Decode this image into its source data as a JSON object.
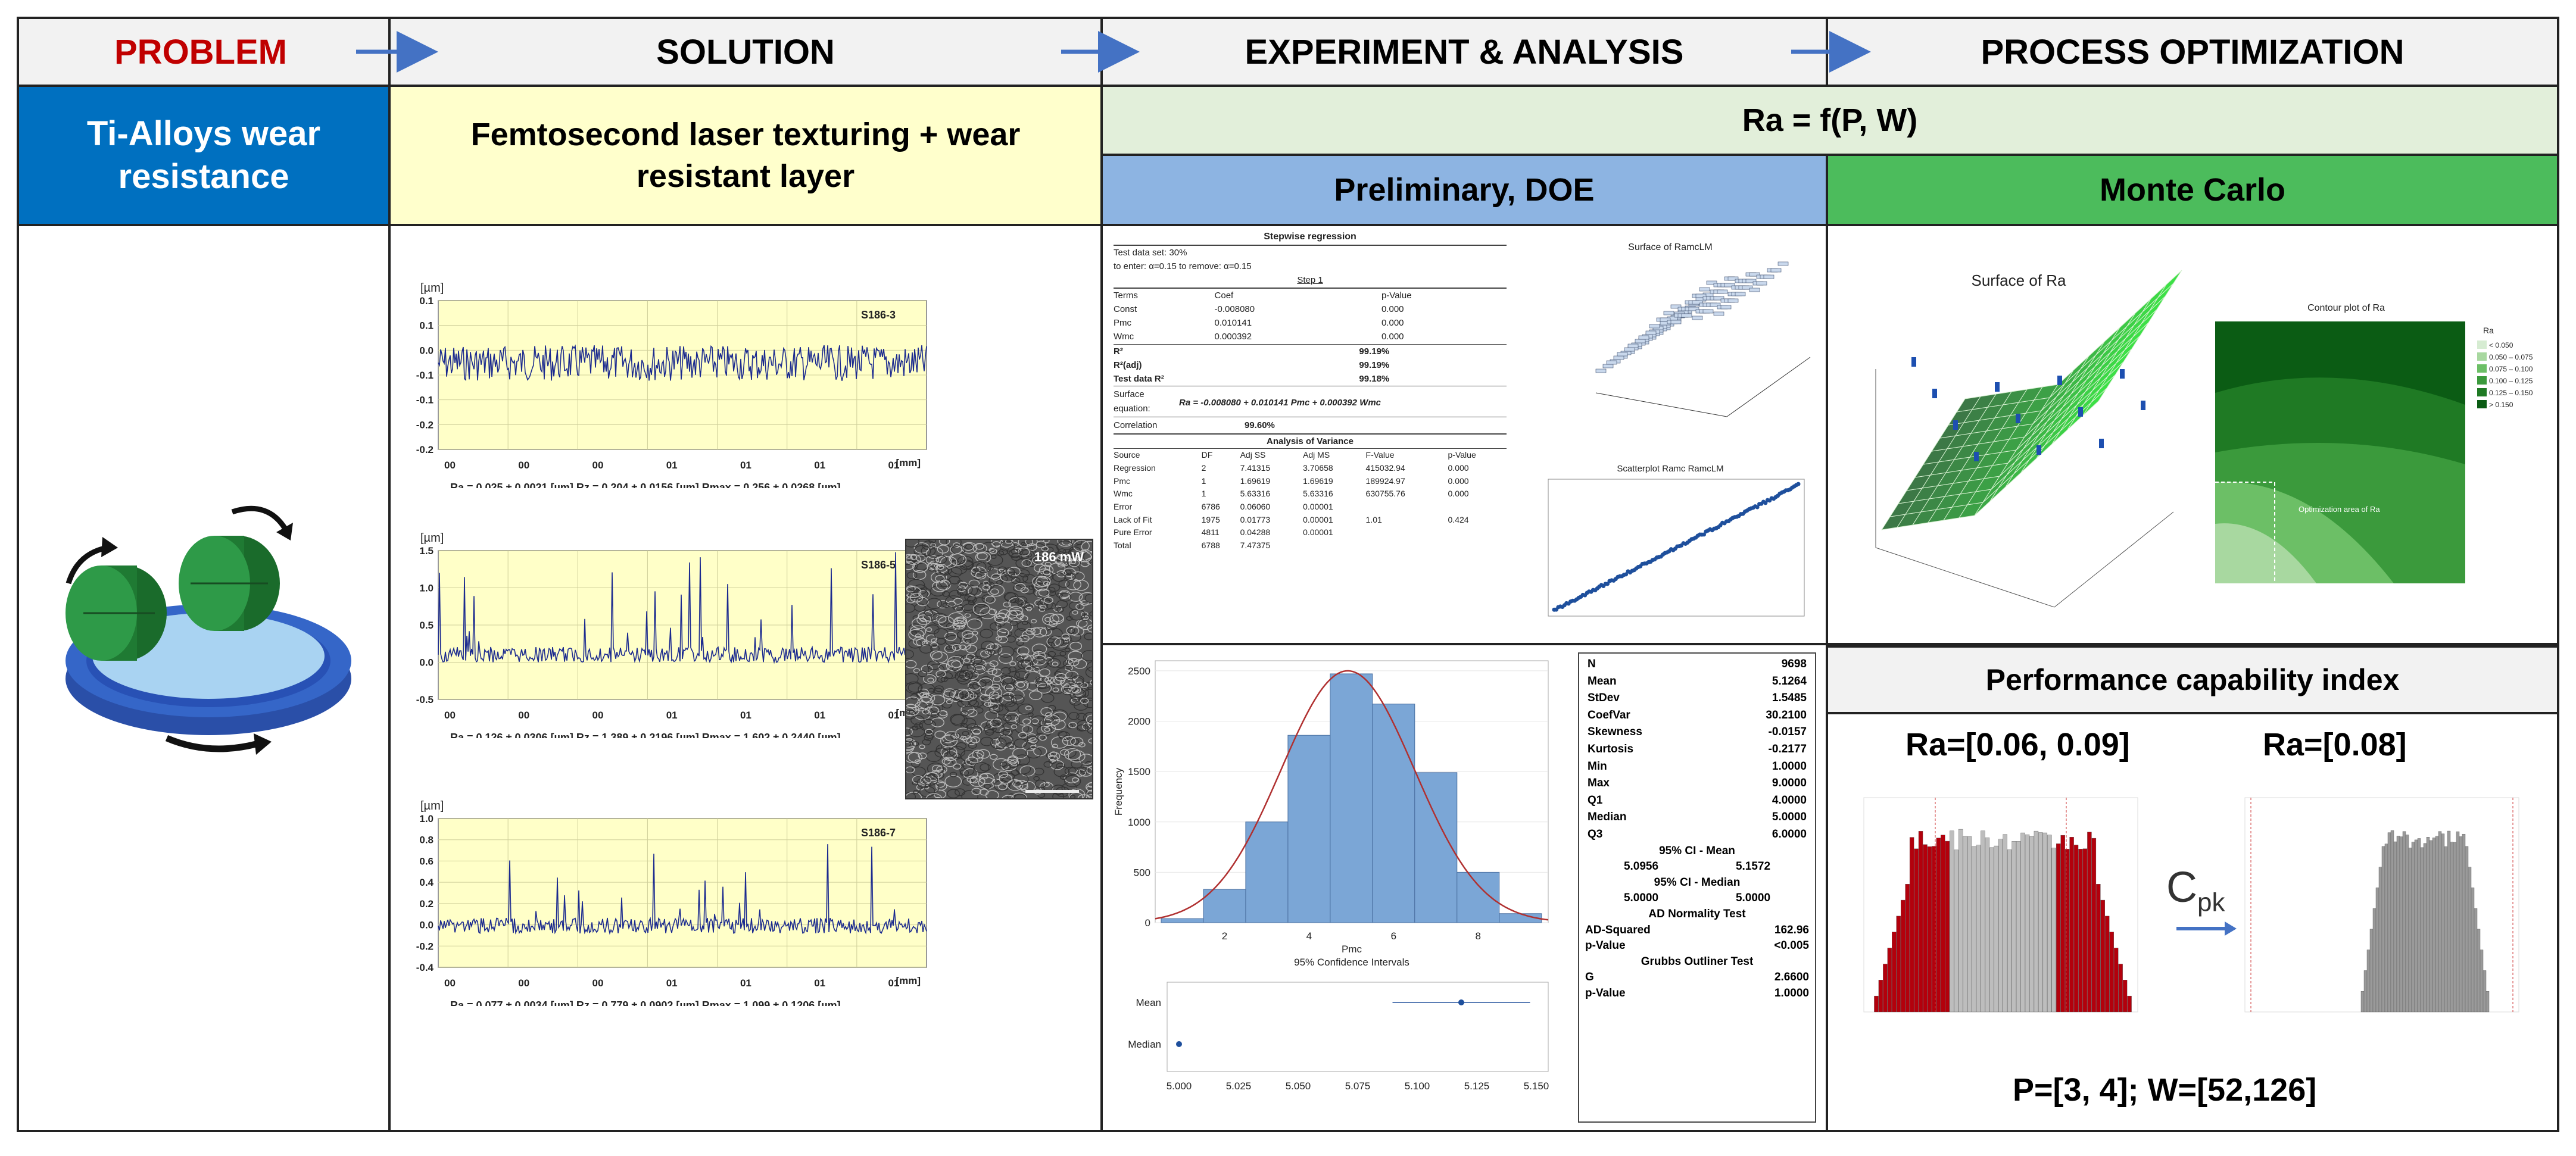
{
  "header": {
    "problem": "PROBLEM",
    "solution": "SOLUTION",
    "experiment": "EXPERIMENT & ANALYSIS",
    "optimization": "PROCESS OPTIMIZATION"
  },
  "row2": {
    "problem_text": "Ti-Alloys wear resistance",
    "solution_text": "Femtosecond laser texturing + wear resistant layer",
    "model": "Ra = f(P, W)",
    "prelim": "Preliminary, DOE",
    "monte_carlo": "Monte Carlo"
  },
  "profiles": [
    {
      "tag": "S186-3",
      "unit": "[µm]",
      "yticks": [
        "0.1",
        "0.1",
        "0.0",
        "-0.1",
        "-0.1",
        "-0.2",
        "-0.2"
      ],
      "xticks": [
        "00",
        "00",
        "00",
        "01",
        "01",
        "01",
        "01"
      ],
      "xunit": "[mm]",
      "caption": "Ra = 0.025 ± 0.0021 [µm]   Rz = 0.204 ± 0.0156 [µm]   Rmax = 0.256 ± 0.0268 [µm]"
    },
    {
      "tag": "S186-5",
      "unit": "[µm]",
      "yticks": [
        "1.5",
        "1.0",
        "0.5",
        "0.0",
        "-0.5"
      ],
      "xticks": [
        "00",
        "00",
        "00",
        "01",
        "01",
        "01",
        "01"
      ],
      "xunit": "[mm]",
      "caption": "Ra = 0.126 ± 0.0306 [µm]   Rz = 1.389 ± 0.2196 [µm]   Rmax = 1.602 ± 0.2440 [µm]"
    },
    {
      "tag": "S186-7",
      "unit": "[µm]",
      "yticks": [
        "1.0",
        "0.8",
        "0.6",
        "0.4",
        "0.2",
        "0.0",
        "-0.2",
        "-0.4"
      ],
      "xticks": [
        "00",
        "00",
        "00",
        "01",
        "01",
        "01",
        "01"
      ],
      "xunit": "[mm]",
      "caption": "Ra = 0.077 ± 0.0034 [µm]   Rz = 0.779 ± 0.0902 [µm]   Rmax = 1.099 ± 0.1206 [µm]"
    }
  ],
  "sem_label": "186 mW",
  "stepwise": {
    "title": "Stepwise regression",
    "l1": "Test data set: 30%",
    "l2": "to enter: α=0.15   to remove: α=0.15",
    "step": "Step 1",
    "terms_head": [
      "Terms",
      "Coef",
      "p-Value"
    ],
    "terms": [
      [
        "Const",
        "-0.008080",
        "0.000"
      ],
      [
        "Pmc",
        "0.010141",
        "0.000"
      ],
      [
        "Wmc",
        "0.000392",
        "0.000"
      ]
    ],
    "r2": [
      [
        "R²",
        "99.19%"
      ],
      [
        "R²(adj)",
        "99.19%"
      ],
      [
        "Test data R²",
        "99.18%"
      ]
    ],
    "eq_label": "Surface equation:",
    "equation": "Ra = -0.008080 + 0.010141 Pmc + 0.000392 Wmc",
    "correlation": [
      "Correlation",
      "99.60%"
    ],
    "anova_title": "Analysis of Variance",
    "anova_head": [
      "Source",
      "DF",
      "Adj SS",
      "Adj MS",
      "F-Value",
      "p-Value"
    ],
    "anova": [
      [
        "Regression",
        "2",
        "7.41315",
        "3.70658",
        "415032.94",
        "0.000"
      ],
      [
        "Pmc",
        "1",
        "1.69619",
        "1.69619",
        "189924.97",
        "0.000"
      ],
      [
        "Wmc",
        "1",
        "5.63316",
        "5.63316",
        "630755.76",
        "0.000"
      ],
      [
        "Error",
        "6786",
        "0.06060",
        "0.00001",
        "",
        ""
      ],
      [
        "Lack of Fit",
        "1975",
        "0.01773",
        "0.00001",
        "1.01",
        "0.424"
      ],
      [
        "Pure Error",
        "4811",
        "0.04288",
        "0.00001",
        "",
        ""
      ],
      [
        "Total",
        "6788",
        "7.47375",
        "",
        "",
        ""
      ]
    ]
  },
  "surface_small_title": "Surface of RamcLM",
  "scatter_small_title": "Scatterplot Ramc RamcLM",
  "histogram": {
    "ylabel": "Frequency",
    "xlabel": "Pmc",
    "ci_title": "95% Confidence Intervals",
    "ci_labels": [
      "Mean",
      "Median"
    ],
    "ci_ticks": [
      "5.000",
      "5.025",
      "5.050",
      "5.075",
      "5.100",
      "5.125",
      "5.150"
    ]
  },
  "stats": [
    [
      "N",
      "9698"
    ],
    [
      "Mean",
      "5.1264"
    ],
    [
      "StDev",
      "1.5485"
    ],
    [
      "CoefVar",
      "30.2100"
    ],
    [
      "Skewness",
      "-0.0157"
    ],
    [
      "Kurtosis",
      "-0.2177"
    ],
    [
      "Min",
      "1.0000"
    ],
    [
      "Max",
      "9.0000"
    ],
    [
      "Q1",
      "4.0000"
    ],
    [
      "Median",
      "5.0000"
    ],
    [
      "Q3",
      "6.0000"
    ]
  ],
  "stats_ci_mean": {
    "title": "95% CI - Mean",
    "lo": "5.0956",
    "hi": "5.1572"
  },
  "stats_ci_median": {
    "title": "95% CI - Median",
    "lo": "5.0000",
    "hi": "5.0000"
  },
  "stats_ad": {
    "title": "AD Normality Test",
    "rows": [
      [
        "AD-Squared",
        "162.96"
      ],
      [
        "p-Value",
        "<0.005"
      ]
    ]
  },
  "stats_grubbs": {
    "title": "Grubbs Outliner Test",
    "rows": [
      [
        "G",
        "2.6600"
      ],
      [
        "p-Value",
        "1.0000"
      ]
    ]
  },
  "mc": {
    "surface_title": "Surface of Ra",
    "contour_title": "Contour plot of Ra",
    "contour_note": "Optimization area of Ra",
    "legend_title": "Ra",
    "legend": [
      "< 0.050",
      "0.050 – 0.075",
      "0.075 – 0.100",
      "0.100 – 0.125",
      "0.125 – 0.150",
      "> 0.150"
    ],
    "contour_colors": [
      "#d6ecd2",
      "#a8d8a0",
      "#6cbf66",
      "#3b9a3c",
      "#1f7a24",
      "#0b5c14"
    ]
  },
  "capability": {
    "title": "Performance capability index",
    "left": "Ra=[0.06, 0.09]",
    "right": "Ra=[0.08]",
    "cpk": "C",
    "cpk_sub": "pk",
    "result": "P=[3, 4]; W=[52,126]"
  },
  "colors": {
    "problem_red": "#c00000",
    "blue_cell": "#0070c0",
    "yellow_cell": "#ffffcc",
    "green_light": "#e2efda",
    "doe_blue": "#8db4e2",
    "mc_green": "#4cbc5c",
    "perf_gray": "#f2f2f2",
    "arrow": "#4472c4"
  }
}
